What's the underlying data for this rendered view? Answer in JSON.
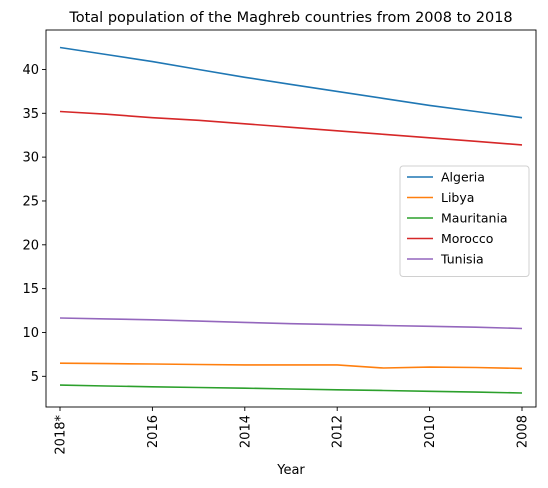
{
  "chart_data": {
    "type": "line",
    "title": "Total population of the Maghreb countries from 2008 to 2018",
    "xlabel": "Year",
    "ylabel": "",
    "x": [
      "2018*",
      "2017",
      "2016",
      "2015",
      "2014",
      "2013",
      "2012",
      "2011",
      "2010",
      "2009",
      "2008"
    ],
    "x_tick_labels": [
      "2018*",
      "2016",
      "2014",
      "2012",
      "2010",
      "2008"
    ],
    "x_tick_rotation": "vertical",
    "ylim": [
      1.5,
      44.5
    ],
    "y_ticks": [
      5,
      10,
      15,
      20,
      25,
      30,
      35,
      40
    ],
    "grid": false,
    "legend_position": "center-right",
    "series": [
      {
        "name": "Algeria",
        "color": "#1f77b4",
        "values": [
          42.5,
          41.7,
          40.9,
          40.0,
          39.1,
          38.3,
          37.5,
          36.7,
          35.9,
          35.2,
          34.5
        ]
      },
      {
        "name": "Libya",
        "color": "#ff7f0e",
        "values": [
          6.5,
          6.45,
          6.4,
          6.35,
          6.3,
          6.3,
          6.3,
          5.95,
          6.05,
          6.0,
          5.9
        ]
      },
      {
        "name": "Mauritania",
        "color": "#2ca02c",
        "values": [
          4.0,
          3.9,
          3.8,
          3.72,
          3.64,
          3.55,
          3.46,
          3.38,
          3.29,
          3.2,
          3.1
        ]
      },
      {
        "name": "Morocco",
        "color": "#d62728",
        "values": [
          35.2,
          34.9,
          34.5,
          34.2,
          33.8,
          33.4,
          33.0,
          32.6,
          32.2,
          31.8,
          31.4
        ]
      },
      {
        "name": "Tunisia",
        "color": "#9467bd",
        "values": [
          11.65,
          11.55,
          11.45,
          11.3,
          11.15,
          11.0,
          10.9,
          10.8,
          10.7,
          10.6,
          10.45
        ]
      }
    ]
  }
}
